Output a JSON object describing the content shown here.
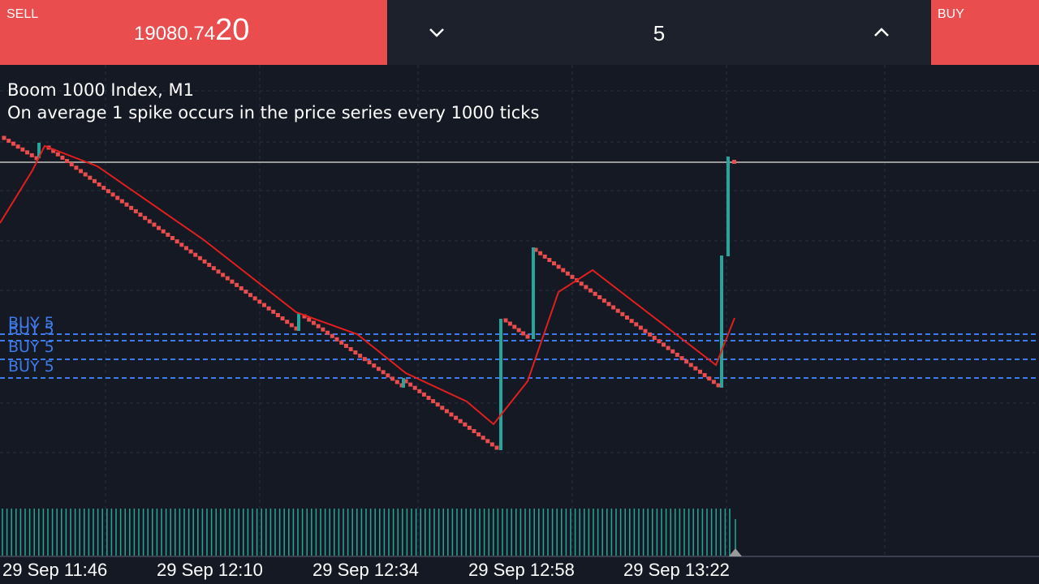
{
  "order_bar": {
    "sell_label": "SELL",
    "sell_price_main": "19080.74",
    "sell_price_big": "20",
    "volume": "5",
    "buy_label": "BUY"
  },
  "chart": {
    "symbol": "Boom 1000 Index, M1",
    "description": "On average 1 spike occurs in the price series every 1000 ticks",
    "order_lines": [
      "BUY 5",
      "BUY 5",
      "BUY 5",
      "BUY 5"
    ],
    "time_labels": [
      "29 Sep 11:46",
      "29 Sep 12:10",
      "29 Sep 12:34",
      "29 Sep 12:58",
      "29 Sep 13:22"
    ]
  }
}
